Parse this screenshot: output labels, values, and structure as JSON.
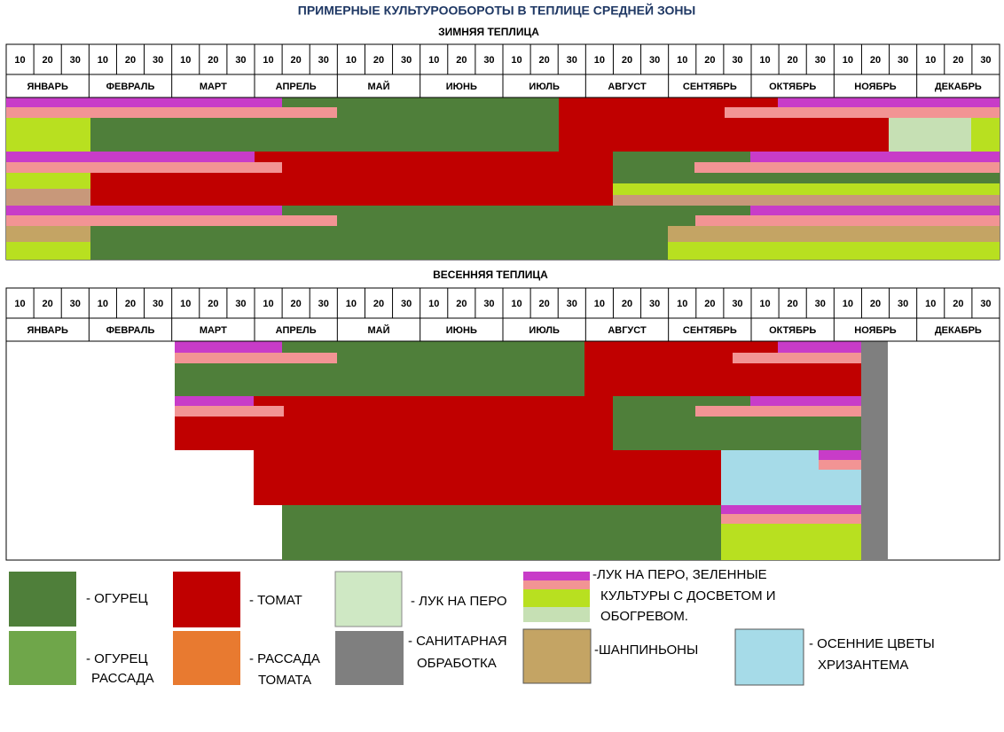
{
  "title": "ПРИМЕРНЫЕ КУЛЬТУРООБОРОТЫ В ТЕПЛИЦЕ СРЕДНЕЙ ЗОНЫ",
  "decades": [
    "10",
    "20",
    "30"
  ],
  "months": [
    "ЯНВАРЬ",
    "ФЕВРАЛЬ",
    "МАРТ",
    "АПРЕЛЬ",
    "МАЙ",
    "ИЮНЬ",
    "ИЮЛЬ",
    "АВГУСТ",
    "СЕНТЯБРЬ",
    "ОКТЯБРЬ",
    "НОЯБРЬ",
    "ДЕКАБРЬ"
  ],
  "sections": [
    {
      "title": "ЗИМНЯЯ  ТЕПЛИЦА"
    },
    {
      "title": "ВЕСЕННЯЯ ТЕПЛИЦА"
    }
  ],
  "legend": [
    {
      "lines": [
        "- ОГУРЕЦ"
      ]
    },
    {
      "lines": [
        "- ОГУРЕЦ",
        "РАССАДА"
      ]
    },
    {
      "lines": [
        "- ТОМАТ"
      ]
    },
    {
      "lines": [
        "- РАССАДА",
        "ТОМАТА"
      ]
    },
    {
      "lines": [
        "- ЛУК  НА ПЕРО"
      ]
    },
    {
      "lines": [
        "- САНИТАРНАЯ",
        "ОБРАБОТКА"
      ]
    },
    {
      "lines": [
        "-ЛУК НА ПЕРО, ЗЕЛЕННЫЕ",
        "КУЛЬТУРЫ  С ДОСВЕТОМ  И",
        "ОБОГРЕВОМ."
      ]
    },
    {
      "lines": [
        "-ШАНПИНЬОНЫ"
      ]
    },
    {
      "lines": [
        "- ОСЕННИЕ  ЦВЕТЫ",
        "ХРИЗАНТЕМА"
      ]
    }
  ]
}
